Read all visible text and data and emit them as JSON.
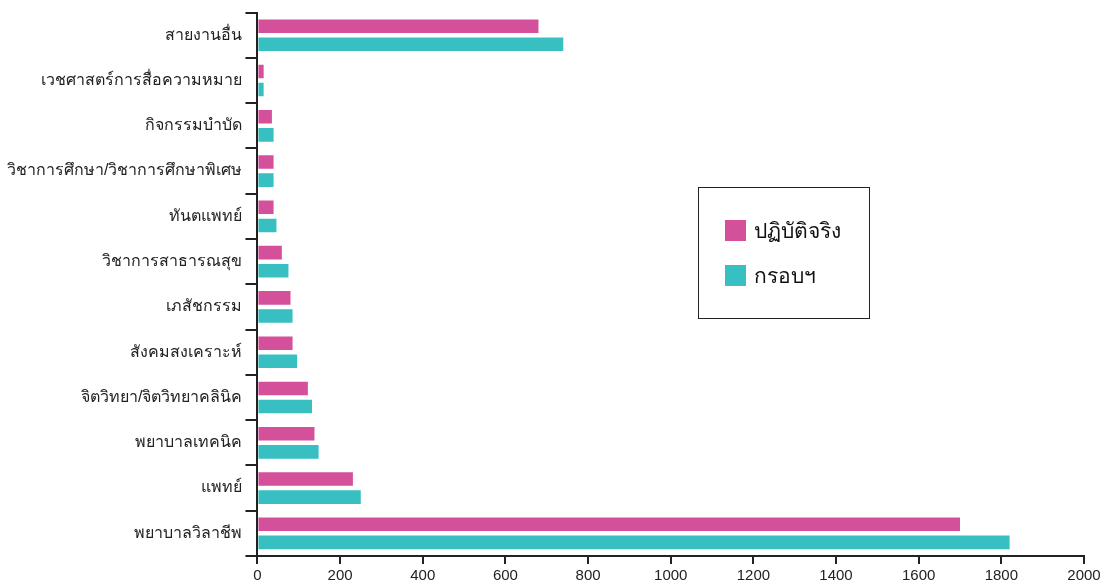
{
  "chart_data": {
    "type": "bar",
    "orientation": "horizontal",
    "categories": [
      "สายงานอื่น",
      "เวชศาสตร์การสื่อความหมาย",
      "กิจกรรมบำบัด",
      "วิชาการศึกษา/วิชาการศึกษาพิเศษ",
      "ทันตแพทย์",
      "วิชาการสาธารณสุข",
      "เภสัชกรรม",
      "สังคมสงเคราะห์",
      "จิตวิทยา/จิตวิทยาคลินิค",
      "พยาบาลเทคนิค",
      "แพทย์",
      "พยาบาลวิลาชีพ"
    ],
    "series": [
      {
        "name": "ปฏิบัติจริง",
        "color": "#d4509a",
        "values": [
          680,
          15,
          35,
          39,
          39,
          59,
          80,
          85,
          122,
          138,
          231,
          1700
        ]
      },
      {
        "name": "กรอบฯ",
        "color": "#38bfc1",
        "values": [
          740,
          15,
          39,
          39,
          46,
          75,
          85,
          96,
          132,
          148,
          250,
          1820
        ]
      }
    ],
    "xlim": [
      0,
      2000
    ],
    "xticks": [
      0,
      200,
      400,
      600,
      800,
      1000,
      1200,
      1400,
      1600,
      1800,
      2000
    ],
    "grid": false,
    "legend": "right"
  }
}
